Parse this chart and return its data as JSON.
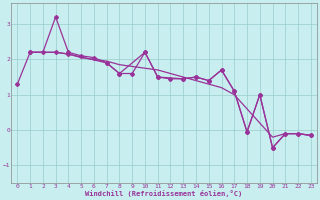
{
  "xlabel": "Windchill (Refroidissement éolien,°C)",
  "xlim": [
    -0.5,
    23.5
  ],
  "ylim": [
    -1.5,
    3.6
  ],
  "yticks": [
    -1,
    0,
    1,
    2,
    3
  ],
  "xticks": [
    0,
    1,
    2,
    3,
    4,
    5,
    6,
    7,
    8,
    9,
    10,
    11,
    12,
    13,
    14,
    15,
    16,
    17,
    18,
    19,
    20,
    21,
    22,
    23
  ],
  "bg_color": "#c8eef0",
  "line_color": "#993399",
  "grid_color": "#99cccc",
  "line1_x": [
    0,
    1,
    2,
    3,
    4,
    5,
    6,
    7,
    8,
    9,
    10,
    11,
    12,
    13,
    14,
    15,
    16,
    17,
    18,
    19,
    20,
    21,
    22,
    23
  ],
  "line1_y": [
    1.3,
    2.2,
    2.2,
    3.2,
    2.2,
    2.1,
    2.05,
    1.9,
    1.6,
    1.6,
    2.2,
    1.5,
    1.45,
    1.45,
    1.5,
    1.4,
    1.7,
    1.1,
    -0.05,
    1.0,
    -0.5,
    -0.1,
    -0.1,
    -0.15
  ],
  "line2_x": [
    1,
    2,
    3,
    4,
    5,
    6,
    7,
    8,
    9,
    10,
    11,
    12,
    13,
    14,
    15,
    16,
    17,
    18,
    19,
    20,
    21,
    22,
    23
  ],
  "line2_y": [
    2.2,
    2.2,
    2.2,
    2.15,
    2.05,
    2.0,
    1.95,
    1.85,
    1.8,
    1.75,
    1.7,
    1.6,
    1.5,
    1.4,
    1.3,
    1.2,
    1.0,
    0.6,
    0.2,
    -0.2,
    -0.1,
    -0.1,
    -0.15
  ],
  "line3_x": [
    1,
    3,
    4,
    7,
    8,
    10,
    11,
    13,
    14,
    15,
    16,
    17,
    18,
    19,
    20,
    21,
    22,
    23
  ],
  "line3_y": [
    2.2,
    2.2,
    2.15,
    1.9,
    1.6,
    2.2,
    1.5,
    1.45,
    1.5,
    1.4,
    1.7,
    1.1,
    -0.05,
    1.0,
    -0.5,
    -0.1,
    -0.1,
    -0.15
  ]
}
